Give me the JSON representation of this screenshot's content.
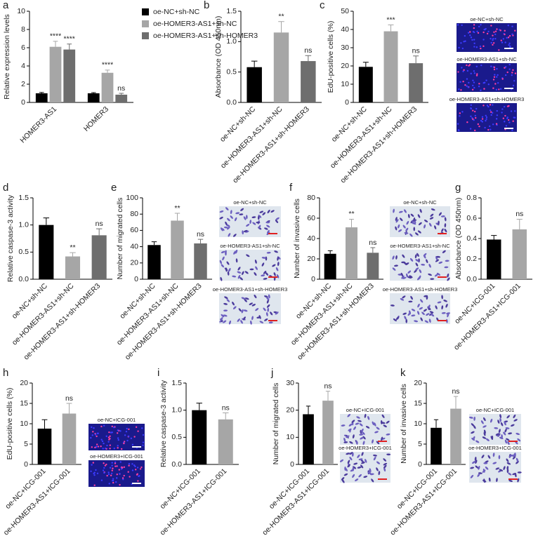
{
  "chart_data": [
    {
      "type": "grouped_bar",
      "panel": "a",
      "y_label": "Relative expression levels",
      "categories": [
        "HOMER3-AS1",
        "HOMER3"
      ],
      "ylim": [
        0,
        10
      ],
      "yticks": [
        0,
        2,
        4,
        6,
        8,
        10
      ],
      "series": [
        {
          "name": "oe-NC+sh-NC",
          "color": "#000000",
          "values": [
            1.0,
            1.0
          ],
          "errors": [
            0.1,
            0.08
          ],
          "annotations": [
            null,
            null
          ]
        },
        {
          "name": "oe-HOMER3-AS1+sh-NC",
          "color": "#a6a6a6",
          "values": [
            6.1,
            3.25
          ],
          "errors": [
            0.6,
            0.3
          ],
          "annotations": [
            "****",
            "****"
          ]
        },
        {
          "name": "oe-HOMER3-AS1+sh-HOMER3",
          "color": "#6e6e6e",
          "values": [
            5.8,
            0.85
          ],
          "errors": [
            0.6,
            0.15
          ],
          "annotations": [
            "****",
            "ns"
          ]
        }
      ]
    },
    {
      "type": "bar",
      "panel": "b",
      "y_label": "Absorbance (OD 450nm)",
      "categories": [
        "oe-NC+sh-NC",
        "oe-HOMER3-AS1+sh-NC",
        "oe-HOMER3-AS1+sh-HOMER3"
      ],
      "values": [
        0.58,
        1.15,
        0.68
      ],
      "errors": [
        0.1,
        0.18,
        0.09
      ],
      "colors": [
        "#000000",
        "#a6a6a6",
        "#6e6e6e"
      ],
      "annotations": [
        null,
        "**",
        "ns"
      ],
      "ylim": [
        0,
        1.5
      ],
      "yticks": [
        {
          "value": 0,
          "label": "0.0"
        },
        0.5,
        {
          "value": 1,
          "label": "1.0"
        },
        1.5
      ]
    },
    {
      "type": "bar",
      "panel": "c",
      "y_label": "EdU-positive cells (%)",
      "categories": [
        "oe-NC+sh-NC",
        "oe-HOMER3-AS1+sh-NC",
        "oe-HOMER3-AS1+sh-HOMER3"
      ],
      "values": [
        19.5,
        39,
        21.5
      ],
      "errors": [
        2.5,
        3.5,
        4
      ],
      "colors": [
        "#000000",
        "#a6a6a6",
        "#6e6e6e"
      ],
      "annotations": [
        null,
        "***",
        "ns"
      ],
      "ylim": [
        0,
        50
      ],
      "yticks": [
        0,
        10,
        20,
        30,
        40,
        50
      ],
      "image_labels": [
        "oe-NC+sh-NC",
        "oe-HOMER3-AS1+sh-NC",
        "oe-HOMER3-AS1+sh-HOMER3"
      ]
    },
    {
      "type": "bar",
      "panel": "d",
      "y_label": "Relative caspase-3 activity",
      "categories": [
        "oe-NC+sh-NC",
        "oe-HOMER3-AS1+sh-NC",
        "oe-HOMER3-AS1+sh-HOMER3"
      ],
      "values": [
        1.0,
        0.42,
        0.81
      ],
      "errors": [
        0.13,
        0.07,
        0.12
      ],
      "colors": [
        "#000000",
        "#a6a6a6",
        "#6e6e6e"
      ],
      "annotations": [
        null,
        "**",
        "ns"
      ],
      "ylim": [
        0,
        1.5
      ],
      "yticks": [
        {
          "value": 0,
          "label": "0.0"
        },
        0.5,
        {
          "value": 1,
          "label": "1.0"
        },
        1.5
      ]
    },
    {
      "type": "bar",
      "panel": "e",
      "y_label": "Number of migrated cells",
      "categories": [
        "oe-NC+sh-NC",
        "oe-HOMER3-AS1+sh-NC",
        "oe-HOMER3-AS1+sh-HOMER3"
      ],
      "values": [
        42,
        72,
        44
      ],
      "errors": [
        4,
        9,
        5
      ],
      "colors": [
        "#000000",
        "#a6a6a6",
        "#6e6e6e"
      ],
      "annotations": [
        null,
        "**",
        "ns"
      ],
      "ylim": [
        0,
        100
      ],
      "yticks": [
        0,
        20,
        40,
        60,
        80,
        100
      ],
      "image_labels": [
        "oe-NC+sh-NC",
        "oe-HOMER3-AS1+sh-NC",
        "oe-HOMER3-AS1+sh-HOMER3"
      ]
    },
    {
      "type": "bar",
      "panel": "f",
      "y_label": "Number of invasive cells",
      "categories": [
        "oe-NC+sh-NC",
        "oe-HOMER3-AS1+sh-NC",
        "oe-HOMER3-AS1+sh-HOMER3"
      ],
      "values": [
        25,
        51,
        26
      ],
      "errors": [
        3,
        8,
        5
      ],
      "colors": [
        "#000000",
        "#a6a6a6",
        "#6e6e6e"
      ],
      "annotations": [
        null,
        "**",
        "ns"
      ],
      "ylim": [
        0,
        80
      ],
      "yticks": [
        0,
        20,
        40,
        60,
        80
      ],
      "image_labels": [
        "oe-NC+sh-NC",
        "oe-HOMER3-AS1+sh-NC",
        "oe-HOMER3-AS1+sh-HOMER3"
      ]
    },
    {
      "type": "bar",
      "panel": "g",
      "y_label": "Absorbance (OD 450nm)",
      "categories": [
        "oe-NC+ICG-001",
        "oe-HOMER3-AS1+ICG-001"
      ],
      "values": [
        0.39,
        0.49
      ],
      "errors": [
        0.04,
        0.1
      ],
      "colors": [
        "#000000",
        "#a6a6a6"
      ],
      "annotations": [
        null,
        "ns"
      ],
      "ylim": [
        0,
        0.8
      ],
      "yticks": [
        {
          "value": 0,
          "label": "0.0"
        },
        0.2,
        0.4,
        0.6,
        0.8
      ]
    },
    {
      "type": "bar",
      "panel": "h",
      "y_label": "EdU-positive cells (%)",
      "categories": [
        "oe-NC+ICG-001",
        "oe-HOMER3-AS1+ICG-001"
      ],
      "values": [
        8.8,
        12.5
      ],
      "errors": [
        2.2,
        2.5
      ],
      "colors": [
        "#000000",
        "#a6a6a6"
      ],
      "annotations": [
        null,
        "ns"
      ],
      "ylim": [
        0,
        20
      ],
      "yticks": [
        0,
        5,
        10,
        15,
        20
      ],
      "image_labels": [
        "oe-NC+ICG-001",
        "oe-HOMER3+ICG-001"
      ]
    },
    {
      "type": "bar",
      "panel": "i",
      "y_label": "Relative caspase-3 activity",
      "categories": [
        "oe-NC+ICG-001",
        "oe-HOMER3-AS1+ICG-001"
      ],
      "values": [
        1.0,
        0.83
      ],
      "errors": [
        0.13,
        0.12
      ],
      "colors": [
        "#000000",
        "#a6a6a6"
      ],
      "annotations": [
        null,
        "ns"
      ],
      "ylim": [
        0,
        1.5
      ],
      "yticks": [
        {
          "value": 0,
          "label": "0.0"
        },
        0.5,
        {
          "value": 1,
          "label": "1.0"
        },
        1.5
      ]
    },
    {
      "type": "bar",
      "panel": "j",
      "y_label": "Number of migrated cells",
      "categories": [
        "oe-NC+ICG-001",
        "oe-HOMER3-AS1+ICG-001"
      ],
      "values": [
        18.5,
        23.5
      ],
      "errors": [
        3,
        3.5
      ],
      "colors": [
        "#000000",
        "#a6a6a6"
      ],
      "annotations": [
        null,
        "ns"
      ],
      "ylim": [
        0,
        30
      ],
      "yticks": [
        0,
        10,
        20,
        30
      ],
      "image_labels": [
        "oe-NC+ICG-001",
        "oe-HOMER3+ICG-001"
      ]
    },
    {
      "type": "bar",
      "panel": "k",
      "y_label": "Number of invasive cells",
      "categories": [
        "oe-NC+ICG-001",
        "oe-HOMER3-AS1+ICG-001"
      ],
      "values": [
        9,
        13.7
      ],
      "errors": [
        2,
        3
      ],
      "colors": [
        "#000000",
        "#a6a6a6"
      ],
      "annotations": [
        null,
        "ns"
      ],
      "ylim": [
        0,
        20
      ],
      "yticks": [
        0,
        5,
        10,
        15,
        20
      ],
      "image_labels": [
        "oe-NC+ICG-001",
        "oe-HOMER3+ICG-001"
      ]
    }
  ]
}
